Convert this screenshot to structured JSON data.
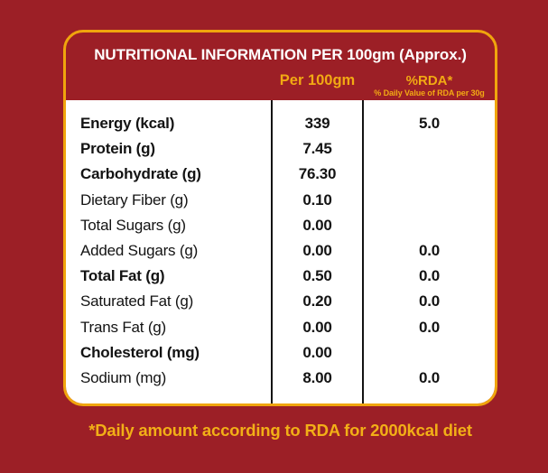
{
  "colors": {
    "background_red": "#9C1F26",
    "gold_border": "#F0A50D",
    "gold_header_text": "#F2A913",
    "gold_footer_text": "#F2AF17",
    "panel_white": "#FFFFFF",
    "ink_black": "#131313",
    "title_white": "#FFFFFF"
  },
  "card": {
    "title": "NUTRITIONAL INFORMATION PER 100gm (Approx.)",
    "columns": {
      "per_100gm": "Per 100gm",
      "rda": "%RDA*",
      "rda_subtitle": "% Daily Value of RDA per 30g"
    },
    "rows": [
      {
        "label": "Energy (kcal)",
        "bold": true,
        "per_100gm": "339",
        "rda": "5.0"
      },
      {
        "label": "Protein (g)",
        "bold": true,
        "per_100gm": "7.45",
        "rda": ""
      },
      {
        "label": "Carbohydrate (g)",
        "bold": true,
        "per_100gm": "76.30",
        "rda": ""
      },
      {
        "label": "Dietary Fiber (g)",
        "bold": false,
        "per_100gm": "0.10",
        "rda": ""
      },
      {
        "label": "Total Sugars (g)",
        "bold": false,
        "per_100gm": "0.00",
        "rda": ""
      },
      {
        "label": "Added Sugars (g)",
        "bold": false,
        "per_100gm": "0.00",
        "rda": "0.0"
      },
      {
        "label": "Total Fat (g)",
        "bold": true,
        "per_100gm": "0.50",
        "rda": "0.0"
      },
      {
        "label": "Saturated Fat (g)",
        "bold": false,
        "per_100gm": "0.20",
        "rda": "0.0"
      },
      {
        "label": "Trans Fat (g)",
        "bold": false,
        "per_100gm": "0.00",
        "rda": "0.0"
      },
      {
        "label": "Cholesterol (mg)",
        "bold": true,
        "per_100gm": "0.00",
        "rda": ""
      },
      {
        "label": "Sodium (mg)",
        "bold": false,
        "per_100gm": "8.00",
        "rda": "0.0"
      }
    ]
  },
  "footer": {
    "note": "*Daily amount according to RDA for 2000kcal diet"
  }
}
